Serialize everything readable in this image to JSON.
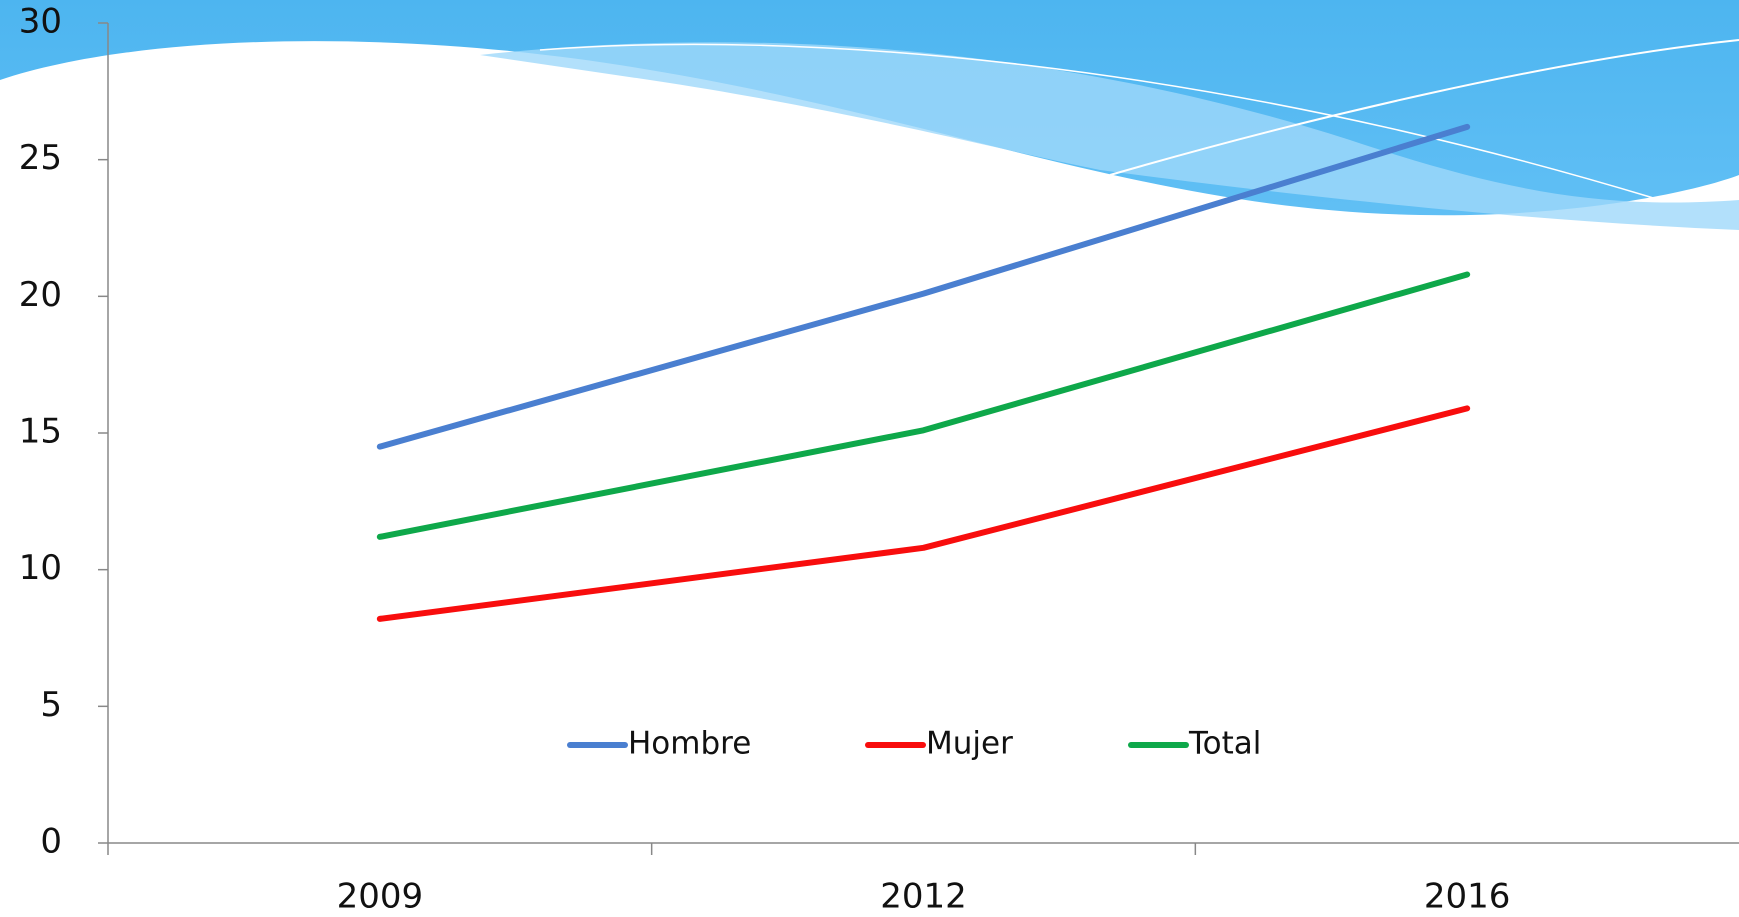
{
  "chart_data": {
    "type": "line",
    "categories": [
      "2009",
      "2012",
      "2016"
    ],
    "series": [
      {
        "name": "Hombre",
        "color": "#4a7fd0",
        "values": [
          14.5,
          20.1,
          26.2
        ]
      },
      {
        "name": "Mujer",
        "color": "#f80d0d",
        "values": [
          8.2,
          10.8,
          15.9
        ]
      },
      {
        "name": "Total",
        "color": "#0ea84a",
        "values": [
          11.2,
          15.1,
          20.8
        ]
      }
    ],
    "ylim": [
      0,
      30
    ],
    "yticks": [
      0,
      5,
      10,
      15,
      20,
      25,
      30
    ],
    "grid": false,
    "legend": "bottom"
  }
}
